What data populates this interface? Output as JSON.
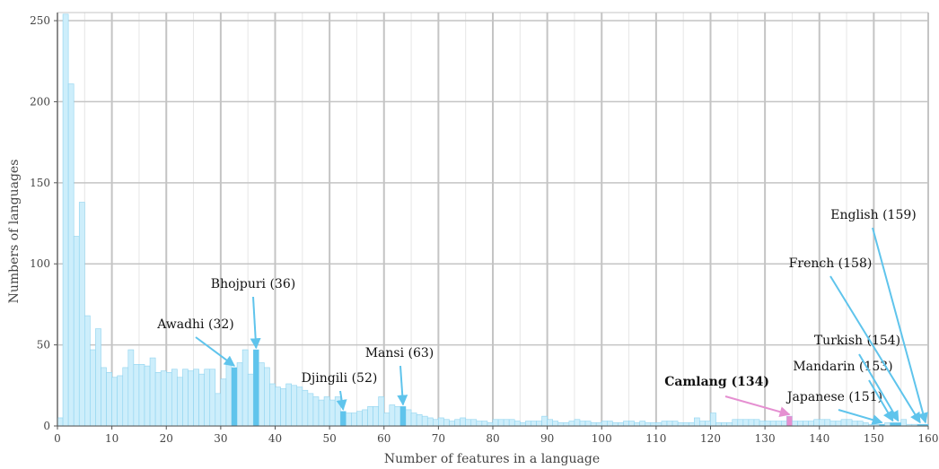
{
  "chart_data": {
    "type": "bar",
    "xlabel": "Number of features in a language",
    "ylabel": "Numbers of languages",
    "xlim": [
      0,
      160
    ],
    "ylim": [
      0,
      255
    ],
    "x_ticks": [
      0,
      10,
      20,
      30,
      40,
      50,
      60,
      70,
      80,
      90,
      100,
      110,
      120,
      130,
      140,
      150,
      160
    ],
    "y_ticks": [
      0,
      50,
      100,
      150,
      200,
      250
    ],
    "grid": true,
    "bar_color": "#cdeefb",
    "bar_edge_color": "#8fd3ef",
    "highlight_color": "#5fc4ec",
    "special_color": "#e58fd1",
    "values": [
      5,
      254,
      211,
      117,
      138,
      68,
      47,
      60,
      36,
      33,
      30,
      31,
      36,
      47,
      38,
      38,
      37,
      42,
      33,
      34,
      33,
      35,
      30,
      35,
      34,
      35,
      32,
      35,
      35,
      20,
      29,
      38,
      36,
      39,
      47,
      32,
      47,
      39,
      36,
      26,
      24,
      23,
      26,
      25,
      24,
      22,
      20,
      18,
      16,
      18,
      16,
      18,
      9,
      8,
      8,
      9,
      10,
      12,
      12,
      18,
      8,
      13,
      12,
      12,
      10,
      8,
      7,
      6,
      5,
      4,
      5,
      4,
      3,
      4,
      5,
      4,
      4,
      3,
      3,
      2,
      4,
      4,
      4,
      4,
      3,
      2,
      3,
      3,
      3,
      6,
      4,
      3,
      2,
      2,
      3,
      4,
      3,
      3,
      2,
      2,
      3,
      3,
      2,
      2,
      3,
      3,
      2,
      3,
      2,
      2,
      2,
      3,
      3,
      3,
      2,
      2,
      2,
      5,
      3,
      3,
      8,
      2,
      2,
      2,
      4,
      4,
      4,
      4,
      4,
      3,
      3,
      3,
      3,
      3,
      6,
      3,
      3,
      3,
      3,
      4,
      4,
      4,
      3,
      3,
      4,
      4,
      3,
      3,
      2,
      1,
      1,
      1,
      2,
      2,
      2,
      4,
      1,
      1,
      1,
      1
    ],
    "highlighted": [
      {
        "x": 32,
        "value": 36,
        "label": "Awadhi (32)"
      },
      {
        "x": 36,
        "value": 47,
        "label": "Bhojpuri (36)"
      },
      {
        "x": 52,
        "value": 9,
        "label": "Djingili (52)"
      },
      {
        "x": 63,
        "value": 12,
        "label": "Mansi (63)"
      },
      {
        "x": 134,
        "value": 6,
        "label": "Camlang (134)",
        "special": true
      },
      {
        "x": 151,
        "value": 1,
        "label": "Japanese (151)"
      },
      {
        "x": 153,
        "value": 2,
        "label": "Mandarin (153)"
      },
      {
        "x": 154,
        "value": 2,
        "label": "Turkish (154)"
      },
      {
        "x": 158,
        "value": 1,
        "label": "French (158)"
      },
      {
        "x": 159,
        "value": 1,
        "label": "English (159)"
      }
    ]
  }
}
